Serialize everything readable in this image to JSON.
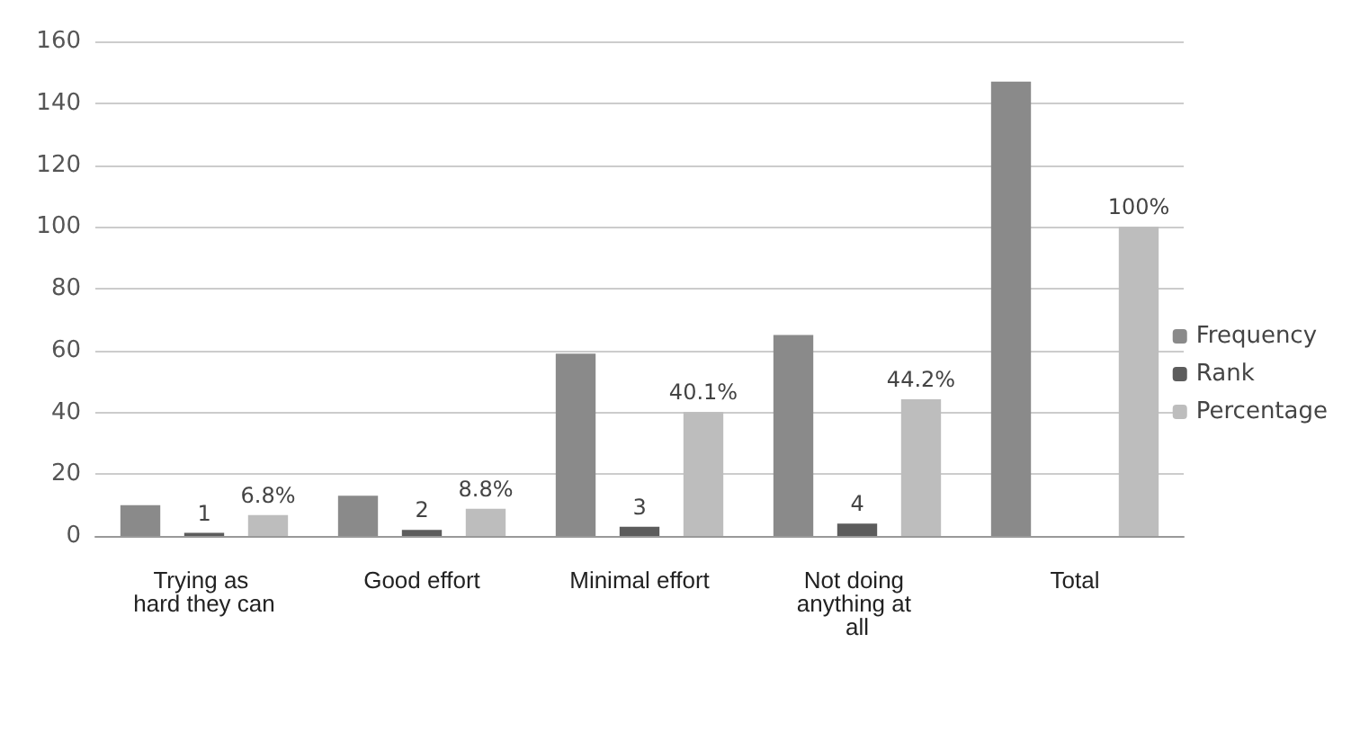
{
  "chart_data": {
    "type": "bar",
    "categories": [
      "Trying as hard they can",
      "Good effort",
      "Minimal effort",
      "Not doing anything at all",
      "Total"
    ],
    "series": [
      {
        "name": "Frequency",
        "color": "#8a8a8a",
        "values": [
          10,
          13,
          59,
          65,
          147
        ]
      },
      {
        "name": "Rank",
        "color": "#5c5c5c",
        "values": [
          1,
          2,
          3,
          4,
          null
        ],
        "value_labels": [
          "1",
          "2",
          "3",
          "4",
          null
        ]
      },
      {
        "name": "Percentage",
        "color": "#bdbdbd",
        "values": [
          6.8,
          8.8,
          40.1,
          44.2,
          100
        ],
        "value_labels": [
          "6.8%",
          "8.8%",
          "40.1%",
          "44.2%",
          "100%"
        ]
      }
    ],
    "ylim": [
      0,
      160
    ],
    "yticks": [
      0,
      20,
      40,
      60,
      80,
      100,
      120,
      140,
      160
    ],
    "grid": "y",
    "legend": "right"
  }
}
